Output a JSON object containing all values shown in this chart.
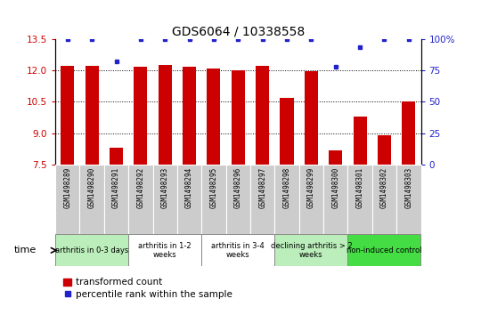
{
  "title": "GDS6064 / 10338558",
  "samples": [
    "GSM1498289",
    "GSM1498290",
    "GSM1498291",
    "GSM1498292",
    "GSM1498293",
    "GSM1498294",
    "GSM1498295",
    "GSM1498296",
    "GSM1498297",
    "GSM1498298",
    "GSM1498299",
    "GSM1498300",
    "GSM1498301",
    "GSM1498302",
    "GSM1498303"
  ],
  "transformed_count": [
    12.2,
    12.2,
    8.3,
    12.15,
    12.25,
    12.15,
    12.1,
    11.98,
    12.2,
    10.7,
    11.95,
    8.2,
    9.8,
    8.9,
    10.5
  ],
  "percentile_rank": [
    100,
    100,
    82,
    100,
    100,
    100,
    100,
    100,
    100,
    100,
    100,
    78,
    93,
    100,
    100
  ],
  "bar_color": "#cc0000",
  "dot_color": "#2222cc",
  "ylim_left": [
    7.5,
    13.5
  ],
  "ylim_right": [
    0,
    100
  ],
  "yticks_left": [
    7.5,
    9.0,
    10.5,
    12.0,
    13.5
  ],
  "yticks_right": [
    0,
    25,
    50,
    75,
    100
  ],
  "groups": [
    {
      "label": "arthritis in 0-3 days",
      "start": 0,
      "end": 3,
      "color": "#bbeebb"
    },
    {
      "label": "arthritis in 1-2\nweeks",
      "start": 3,
      "end": 6,
      "color": "#ffffff"
    },
    {
      "label": "arthritis in 3-4\nweeks",
      "start": 6,
      "end": 9,
      "color": "#ffffff"
    },
    {
      "label": "declining arthritis > 2\nweeks",
      "start": 9,
      "end": 12,
      "color": "#bbeebb"
    },
    {
      "label": "non-induced control",
      "start": 12,
      "end": 15,
      "color": "#44dd44"
    }
  ],
  "legend_bar_label": "transformed count",
  "legend_dot_label": "percentile rank within the sample",
  "tick_color_left": "#cc0000",
  "tick_color_right": "#2222cc",
  "sample_box_color": "#cccccc",
  "bg_color": "#ffffff"
}
